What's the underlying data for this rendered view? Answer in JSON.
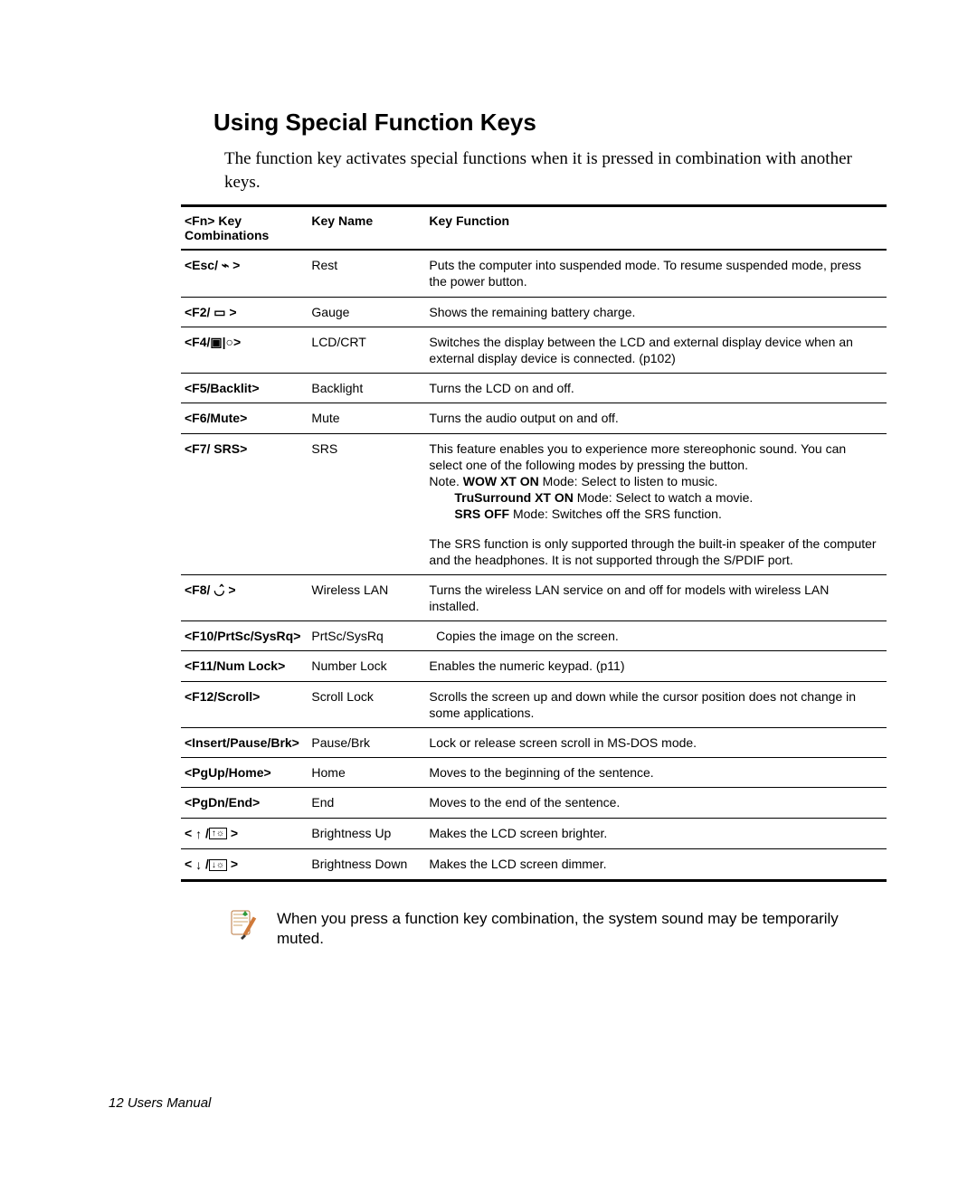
{
  "title": "Using Special Function Keys",
  "intro": "The function key activates special functions when it is pressed in combination with another keys.",
  "headers": {
    "combo": "<Fn> Key Combinations",
    "name": "Key Name",
    "func": "Key Function"
  },
  "rows": [
    {
      "combo": "<Esc/ ⌁ >",
      "name": "Rest",
      "func": "Puts the computer into suspended mode. To resume suspended mode, press the power button."
    },
    {
      "combo": "<F2/ ▭ >",
      "name": "Gauge",
      "func": "Shows the remaining battery charge."
    },
    {
      "combo": "<F4/▣|○>",
      "name": "LCD/CRT",
      "func": "Switches the display between the LCD and external display device when an external display device is connected. (p102)"
    },
    {
      "combo": "<F5/Backlit>",
      "name": "Backlight",
      "func": "Turns the LCD on and off."
    },
    {
      "combo": "<F6/Mute>",
      "name": "Mute",
      "func": "Turns the audio output on and off."
    },
    {
      "combo": "<F7/ SRS>",
      "name": "SRS",
      "func_html": "This feature enables you to experience more stereophonic sound. You can select one of the following modes by pressing the button.<br>Note. <span class=\"bold\">WOW XT ON</span> Mode: Select to listen to music.<br><span class=\"srs-note-line\"><span class=\"bold\">TruSurround XT ON</span> Mode: Select to watch a movie.</span><span class=\"srs-note-line\"><span class=\"bold\">SRS OFF</span> Mode: Switches off the SRS function.</span><div class=\"srs-second-para\">The SRS function is only supported through the built-in speaker of the computer and the headphones. It is not supported through the S/PDIF port.</div>"
    },
    {
      "combo": "<F8/ ◡̂ >",
      "name": "Wireless LAN",
      "func": "Turns the wireless LAN service on and off for models with wireless LAN installed."
    },
    {
      "combo": "<F10/PrtSc/SysRq>",
      "name": "PrtSc/SysRq",
      "func": "  Copies the image on the screen."
    },
    {
      "combo": "<F11/Num Lock>",
      "name": "Number Lock",
      "func": "Enables the numeric keypad. (p11)"
    },
    {
      "combo": "<F12/Scroll>",
      "name": "Scroll Lock",
      "func": "Scrolls the screen up and down while the cursor position does not change in some applications."
    },
    {
      "combo": "<Insert/Pause/Brk>",
      "name": "Pause/Brk",
      "func": "Lock or release screen scroll in MS-DOS mode."
    },
    {
      "combo": "<PgUp/Home>",
      "name": "Home",
      "func": "Moves to the beginning of the sentence."
    },
    {
      "combo": "<PgDn/End>",
      "name": "End",
      "func": "Moves to the end of the sentence."
    },
    {
      "combo_html": "&lt; <span class=\"mini-icon\">↑</span> /<span class=\"brightness-key\">↑☼</span> &gt;",
      "name": "Brightness Up",
      "func": "Makes the LCD screen brighter."
    },
    {
      "combo_html": "&lt; <span class=\"mini-icon\">↓</span> /<span class=\"brightness-key\">↓☼</span> &gt;",
      "name": "Brightness Down",
      "func": "Makes the LCD screen dimmer."
    }
  ],
  "note": "When you press a function key combination, the system sound may be temporarily muted.",
  "footer": "12  Users Manual"
}
